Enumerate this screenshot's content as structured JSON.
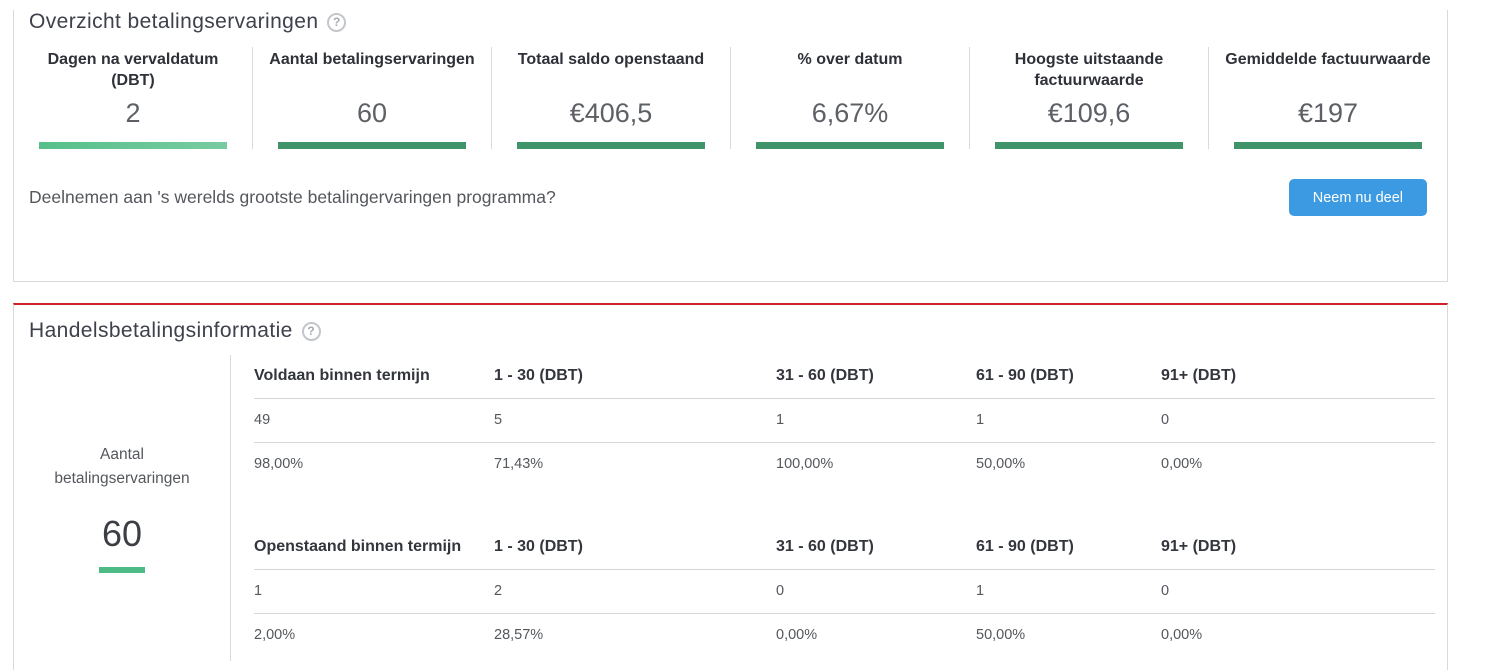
{
  "colors": {
    "border_gray": "#d9d9d9",
    "row_line_gray": "#d6d6d6",
    "accent_red": "#cc2127",
    "button_blue": "#3b9ae1",
    "green_dark": "#3f9569",
    "green_light_start": "#56c08a",
    "green_light_end": "#78cba0",
    "green_medium": "#4eba85",
    "title_text": "#3e414b",
    "label_text": "#2e3138",
    "value_text": "#5d6065",
    "body_text": "#54575c"
  },
  "overview": {
    "title": "Overzicht betalingservaringen",
    "help_icon": "?",
    "stats": [
      {
        "label": "Dagen na vervaldatum (DBT)",
        "value": "2"
      },
      {
        "label": "Aantal betalingservaringen",
        "value": "60"
      },
      {
        "label": "Totaal saldo openstaand",
        "value": "€406,5"
      },
      {
        "label": "% over datum",
        "value": "6,67%"
      },
      {
        "label": "Hoogste uitstaande factuurwaarde",
        "value": "€109,6"
      },
      {
        "label": "Gemiddelde factuurwaarde",
        "value": "€197"
      }
    ],
    "cta_text": "Deelnemen aan 's werelds grootste betalingervaringen programma?",
    "cta_button": "Neem nu deel"
  },
  "trade": {
    "title": "Handelsbetalingsinformatie",
    "help_icon": "?",
    "left": {
      "label": "Aantal betalingservaringen",
      "value": "60"
    },
    "tables": [
      {
        "headers": [
          "Voldaan binnen termijn",
          "1 - 30 (DBT)",
          "31 - 60 (DBT)",
          "61 - 90 (DBT)",
          "91+ (DBT)"
        ],
        "counts": [
          "49",
          "5",
          "1",
          "1",
          "0"
        ],
        "percents": [
          "98,00%",
          "71,43%",
          "100,00%",
          "50,00%",
          "0,00%"
        ]
      },
      {
        "headers": [
          "Openstaand binnen termijn",
          "1 - 30 (DBT)",
          "31 - 60 (DBT)",
          "61 - 90 (DBT)",
          "91+ (DBT)"
        ],
        "counts": [
          "1",
          "2",
          "0",
          "1",
          "0"
        ],
        "percents": [
          "2,00%",
          "28,57%",
          "0,00%",
          "50,00%",
          "0,00%"
        ]
      }
    ]
  }
}
